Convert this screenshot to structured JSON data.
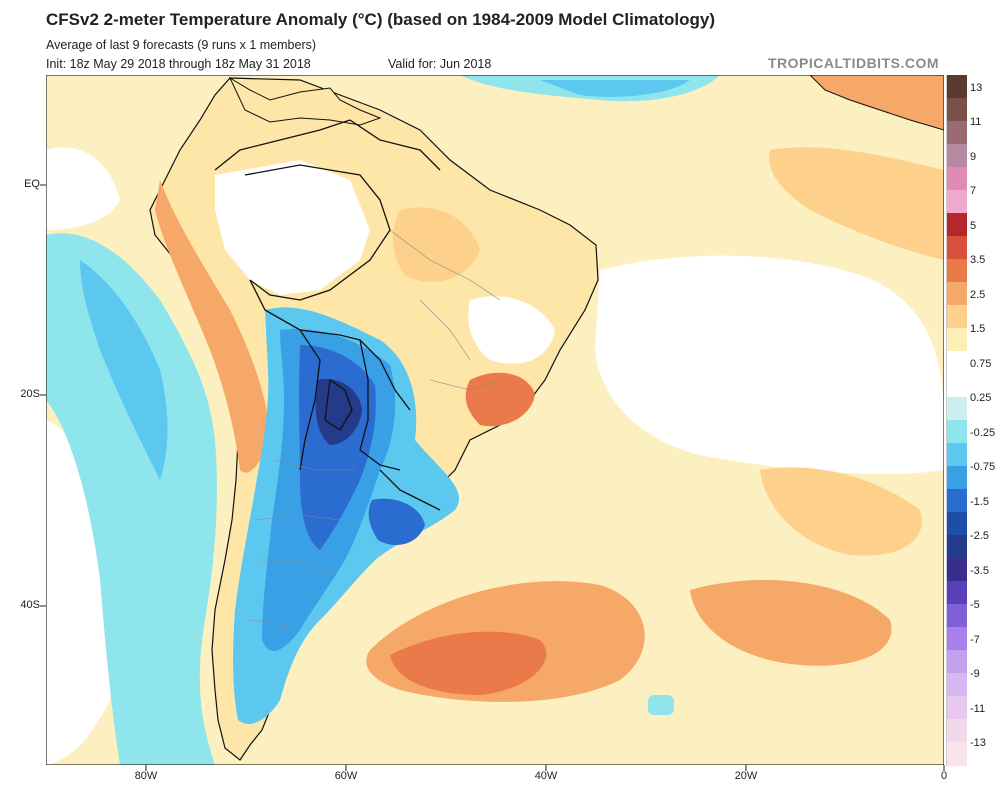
{
  "header": {
    "title": "CFSv2 2-meter Temperature Anomaly (°C) (based on 1984-2009 Model Climatology)",
    "subtitle": "Average of last 9 forecasts (9 runs x 1 members)",
    "init": "Init: 18z May 29 2018 through 18z May 31 2018",
    "valid": "Valid for: Jun 2018",
    "brand": "TROPICALTIDBITS.COM"
  },
  "axes": {
    "lat_labels": [
      "EQ",
      "20S",
      "40S"
    ],
    "lon_labels": [
      "80W",
      "60W",
      "40W",
      "20W",
      "0"
    ]
  },
  "colorbar": {
    "labels": [
      "13",
      "11",
      "9",
      "7",
      "5",
      "3.5",
      "2.5",
      "1.5",
      "0.75",
      "0.25",
      "-0.25",
      "-0.75",
      "-1.5",
      "-2.5",
      "-3.5",
      "-5",
      "-7",
      "-9",
      "-11",
      "-13"
    ],
    "colors": [
      "#5a3b2e",
      "#7a5048",
      "#9a6a72",
      "#b58aa0",
      "#e08ab5",
      "#f0a8cc",
      "#b4282c",
      "#d8503c",
      "#eb7a4a",
      "#f6a868",
      "#fdd08c",
      "#fdeeb8",
      "#ffffff",
      "#ffffff",
      "#cdeef0",
      "#8ee6ec",
      "#5cc8f0",
      "#3aa0e6",
      "#2a6cd0",
      "#1f4ea8",
      "#243a8a",
      "#3a2e8c",
      "#5a40b8",
      "#8060d8",
      "#a880e8",
      "#c4a0ee",
      "#d8b8f0",
      "#e8c8f0",
      "#f2d8ea",
      "#f8e4ea"
    ]
  },
  "map": {
    "ocean_color": "#fdf0c0",
    "land_color": "#fde6a8"
  }
}
